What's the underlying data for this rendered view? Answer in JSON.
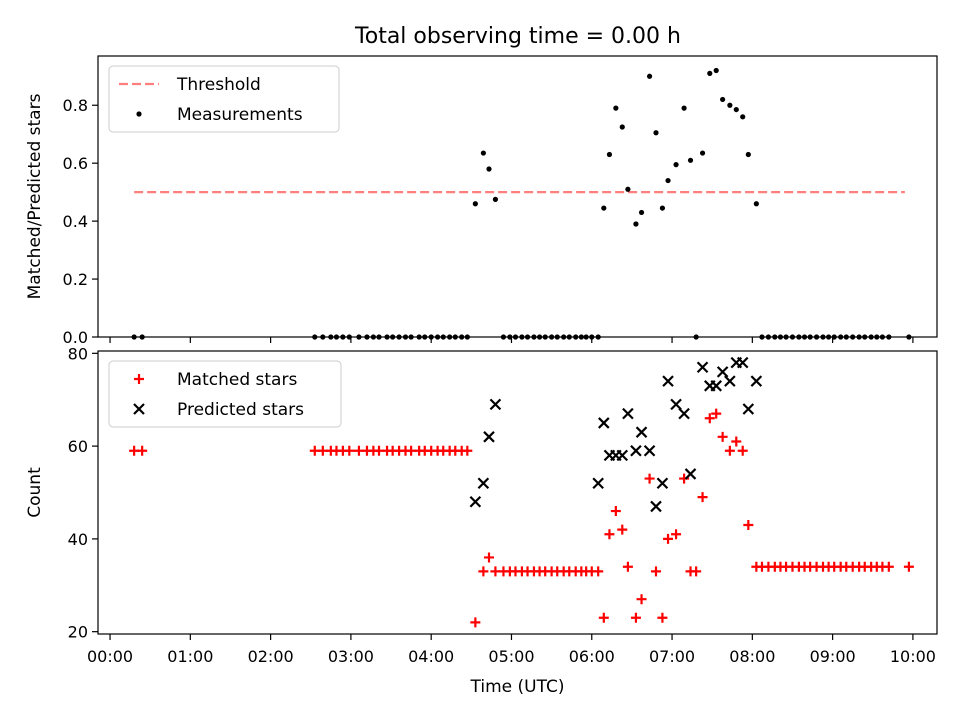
{
  "figure": {
    "title": "Total observing time = 0.00 h"
  },
  "chart_data": [
    {
      "type": "scatter",
      "panel": "top",
      "ylabel": "Matched/Predicted stars",
      "xlabel": "",
      "xlim": [
        -0.15,
        10.3
      ],
      "ylim": [
        0,
        0.97
      ],
      "yticks": [
        0.0,
        0.2,
        0.4,
        0.6,
        0.8
      ],
      "ytick_labels": [
        "0.0",
        "0.2",
        "0.4",
        "0.6",
        "0.8"
      ],
      "grid": false,
      "legend_position": "top-left",
      "threshold": {
        "name": "Threshold",
        "value": 0.5,
        "x": [
          0.3,
          9.9
        ],
        "color": "#ff7f7f"
      },
      "series": [
        {
          "name": "Measurements",
          "color": "#000000",
          "x": [
            0.3,
            0.4,
            2.55,
            2.65,
            2.75,
            2.82,
            2.9,
            2.98,
            3.1,
            3.2,
            3.28,
            3.35,
            3.45,
            3.52,
            3.6,
            3.68,
            3.75,
            3.85,
            3.92,
            4.0,
            4.08,
            4.15,
            4.23,
            4.3,
            4.38,
            4.45,
            4.55,
            4.65,
            4.72,
            4.8,
            4.9,
            4.98,
            5.05,
            5.13,
            5.2,
            5.28,
            5.35,
            5.42,
            5.5,
            5.57,
            5.65,
            5.72,
            5.8,
            5.87,
            5.93,
            6.0,
            6.08,
            6.15,
            6.22,
            6.3,
            6.38,
            6.45,
            6.55,
            6.62,
            6.72,
            6.8,
            6.88,
            6.95,
            7.05,
            7.15,
            7.23,
            7.3,
            7.38,
            7.47,
            7.55,
            7.63,
            7.72,
            7.8,
            7.88,
            7.95,
            8.05,
            8.12,
            8.2,
            8.28,
            8.35,
            8.42,
            8.5,
            8.58,
            8.65,
            8.72,
            8.8,
            8.88,
            8.95,
            9.02,
            9.1,
            9.17,
            9.25,
            9.33,
            9.4,
            9.48,
            9.55,
            9.62,
            9.7,
            9.95
          ],
          "y": [
            0,
            0,
            0,
            0,
            0,
            0,
            0,
            0,
            0,
            0,
            0,
            0,
            0,
            0,
            0,
            0,
            0,
            0,
            0,
            0,
            0,
            0,
            0,
            0,
            0,
            0,
            0.46,
            0.635,
            0.58,
            0.475,
            0,
            0,
            0,
            0,
            0,
            0,
            0,
            0,
            0,
            0,
            0,
            0,
            0,
            0,
            0,
            0,
            0,
            0.445,
            0.63,
            0.79,
            0.725,
            0.51,
            0.39,
            0.43,
            0.9,
            0.705,
            0.445,
            0.54,
            0.595,
            0.79,
            0.61,
            0,
            0.635,
            0.91,
            0.92,
            0.82,
            0.8,
            0.785,
            0.76,
            0.63,
            0.46,
            0,
            0,
            0,
            0,
            0,
            0,
            0,
            0,
            0,
            0,
            0,
            0,
            0,
            0,
            0,
            0,
            0,
            0,
            0,
            0,
            0,
            0,
            0
          ]
        }
      ]
    },
    {
      "type": "scatter",
      "panel": "bottom",
      "ylabel": "Count",
      "xlabel": "Time (UTC)",
      "xlim": [
        -0.15,
        10.3
      ],
      "ylim": [
        19.5,
        80.5
      ],
      "yticks": [
        20,
        40,
        60,
        80
      ],
      "ytick_labels": [
        "20",
        "40",
        "60",
        "80"
      ],
      "xticks": [
        0,
        1,
        2,
        3,
        4,
        5,
        6,
        7,
        8,
        9,
        10
      ],
      "xtick_labels": [
        "00:00",
        "01:00",
        "02:00",
        "03:00",
        "04:00",
        "05:00",
        "06:00",
        "07:00",
        "08:00",
        "09:00",
        "10:00"
      ],
      "grid": false,
      "legend_position": "top-left",
      "series": [
        {
          "name": "Matched stars",
          "marker": "plus",
          "color": "#ff0000",
          "x": [
            0.3,
            0.4,
            2.55,
            2.65,
            2.75,
            2.82,
            2.9,
            2.98,
            3.1,
            3.2,
            3.28,
            3.35,
            3.45,
            3.52,
            3.6,
            3.68,
            3.75,
            3.85,
            3.92,
            4.0,
            4.08,
            4.15,
            4.23,
            4.3,
            4.38,
            4.45,
            4.55,
            4.65,
            4.72,
            4.8,
            4.9,
            4.98,
            5.05,
            5.13,
            5.2,
            5.28,
            5.35,
            5.42,
            5.5,
            5.57,
            5.65,
            5.72,
            5.8,
            5.87,
            5.93,
            6.0,
            6.08,
            6.15,
            6.22,
            6.3,
            6.38,
            6.45,
            6.55,
            6.62,
            6.72,
            6.8,
            6.88,
            6.95,
            7.05,
            7.15,
            7.23,
            7.3,
            7.38,
            7.47,
            7.55,
            7.63,
            7.72,
            7.8,
            7.88,
            7.95,
            8.05,
            8.12,
            8.2,
            8.28,
            8.35,
            8.42,
            8.5,
            8.58,
            8.65,
            8.72,
            8.8,
            8.88,
            8.95,
            9.02,
            9.1,
            9.17,
            9.25,
            9.33,
            9.4,
            9.48,
            9.55,
            9.62,
            9.7,
            9.95
          ],
          "y": [
            59,
            59,
            59,
            59,
            59,
            59,
            59,
            59,
            59,
            59,
            59,
            59,
            59,
            59,
            59,
            59,
            59,
            59,
            59,
            59,
            59,
            59,
            59,
            59,
            59,
            59,
            22,
            33,
            36,
            33,
            33,
            33,
            33,
            33,
            33,
            33,
            33,
            33,
            33,
            33,
            33,
            33,
            33,
            33,
            33,
            33,
            33,
            23,
            41,
            46,
            42,
            34,
            23,
            27,
            53,
            33,
            23,
            40,
            41,
            53,
            33,
            33,
            49,
            66,
            67,
            62,
            59,
            61,
            59,
            43,
            34,
            34,
            34,
            34,
            34,
            34,
            34,
            34,
            34,
            34,
            34,
            34,
            34,
            34,
            34,
            34,
            34,
            34,
            34,
            34,
            34,
            34,
            34,
            34
          ]
        },
        {
          "name": "Predicted stars",
          "marker": "x",
          "color": "#000000",
          "x": [
            4.55,
            4.65,
            4.72,
            4.8,
            6.08,
            6.15,
            6.22,
            6.3,
            6.38,
            6.45,
            6.55,
            6.62,
            6.72,
            6.8,
            6.88,
            6.95,
            7.05,
            7.15,
            7.23,
            7.38,
            7.47,
            7.55,
            7.63,
            7.72,
            7.8,
            7.88,
            7.95,
            8.05
          ],
          "y": [
            48,
            52,
            62,
            69,
            52,
            65,
            58,
            58,
            58,
            67,
            59,
            63,
            59,
            47,
            52,
            74,
            69,
            67,
            54,
            77,
            73,
            73,
            76,
            74,
            78,
            78,
            68,
            74
          ]
        }
      ]
    }
  ]
}
